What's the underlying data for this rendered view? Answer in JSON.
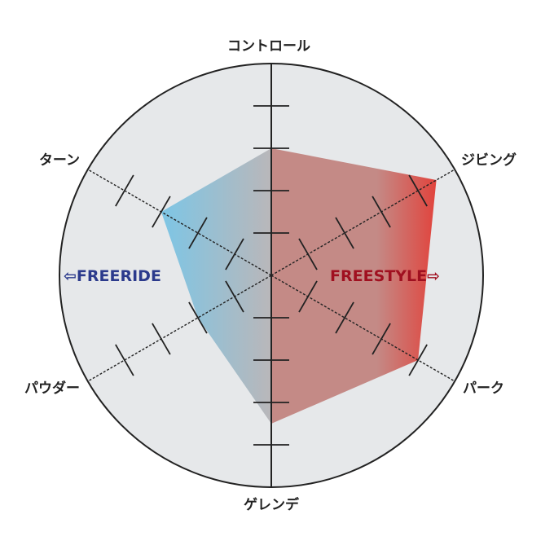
{
  "chart_data": {
    "type": "radar",
    "title": "",
    "axes": [
      "コントロール",
      "ジビング",
      "パーク",
      "ゲレンデ",
      "パウダー",
      "ターン"
    ],
    "values": [
      3,
      4.5,
      4,
      3.5,
      2,
      3
    ],
    "range": [
      0,
      5
    ],
    "tick_count": 4,
    "side_labels": {
      "left": {
        "text": "⇦FREERIDE",
        "color": "#2b3a8c"
      },
      "right": {
        "text": "FREESTYLE⇨",
        "color": "#a01020"
      }
    },
    "colors": {
      "background": "#e6e8ea",
      "freeride_fill": "#7cc6e6",
      "center_fill": "#b9b7ba",
      "freestyle_fill": "#c48a86",
      "freestyle_edge": "#e2413a",
      "lines": "#222222"
    }
  }
}
